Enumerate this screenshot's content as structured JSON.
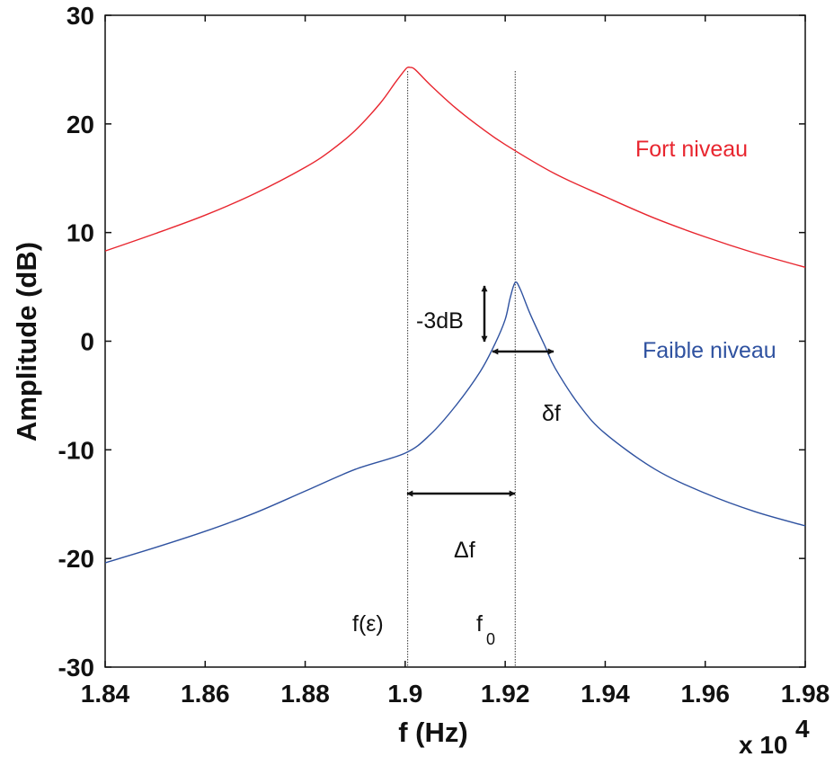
{
  "chart_data": {
    "type": "line",
    "xlabel": "f (Hz)",
    "ylabel": "Amplitude (dB)",
    "x_multiplier_label": "x 10",
    "x_multiplier_exp": "4",
    "xlim": [
      1.84,
      1.98
    ],
    "ylim": [
      -30,
      30
    ],
    "x_ticks": [
      "1.84",
      "1.86",
      "1.88",
      "1.9",
      "1.92",
      "1.94",
      "1.96",
      "1.98"
    ],
    "y_ticks": [
      "-30",
      "-20",
      "-10",
      "0",
      "10",
      "20",
      "30"
    ],
    "grid": false,
    "series": [
      {
        "name": "Fort niveau",
        "color": "#e8262f",
        "x": [
          1.84,
          1.85,
          1.86,
          1.87,
          1.88,
          1.885,
          1.89,
          1.895,
          1.898,
          1.9,
          1.9005,
          1.901,
          1.902,
          1.905,
          1.91,
          1.915,
          1.92,
          1.93,
          1.94,
          1.95,
          1.96,
          1.97,
          1.98
        ],
        "y": [
          8.3,
          9.9,
          11.6,
          13.6,
          16.0,
          17.5,
          19.4,
          21.9,
          23.8,
          25.0,
          25.2,
          25.2,
          25.0,
          23.6,
          21.5,
          19.7,
          18.1,
          15.4,
          13.3,
          11.3,
          9.6,
          8.1,
          6.8
        ]
      },
      {
        "name": "Faible niveau",
        "color": "#2f52a0",
        "x": [
          1.84,
          1.85,
          1.86,
          1.87,
          1.88,
          1.89,
          1.9,
          1.905,
          1.91,
          1.915,
          1.918,
          1.92,
          1.921,
          1.922,
          1.923,
          1.925,
          1.928,
          1.93,
          1.935,
          1.94,
          1.95,
          1.96,
          1.97,
          1.98
        ],
        "y": [
          -20.4,
          -19.0,
          -17.5,
          -15.8,
          -13.8,
          -11.8,
          -10.3,
          -8.6,
          -6.0,
          -2.8,
          -0.2,
          2.0,
          4.0,
          5.4,
          4.8,
          2.5,
          -0.5,
          -2.5,
          -6.0,
          -8.5,
          -11.8,
          -14.0,
          -15.7,
          -17.0
        ]
      }
    ],
    "annotations": {
      "fort_label": "Fort niveau",
      "faible_label": "Faible niveau",
      "minus3db": "-3dB",
      "delta_small": "δf",
      "delta_big": "Δf",
      "f_eps": "f(ε)",
      "f0": "f",
      "f0_sub": "0"
    },
    "vlines_x": [
      1.9005,
      1.922
    ]
  }
}
